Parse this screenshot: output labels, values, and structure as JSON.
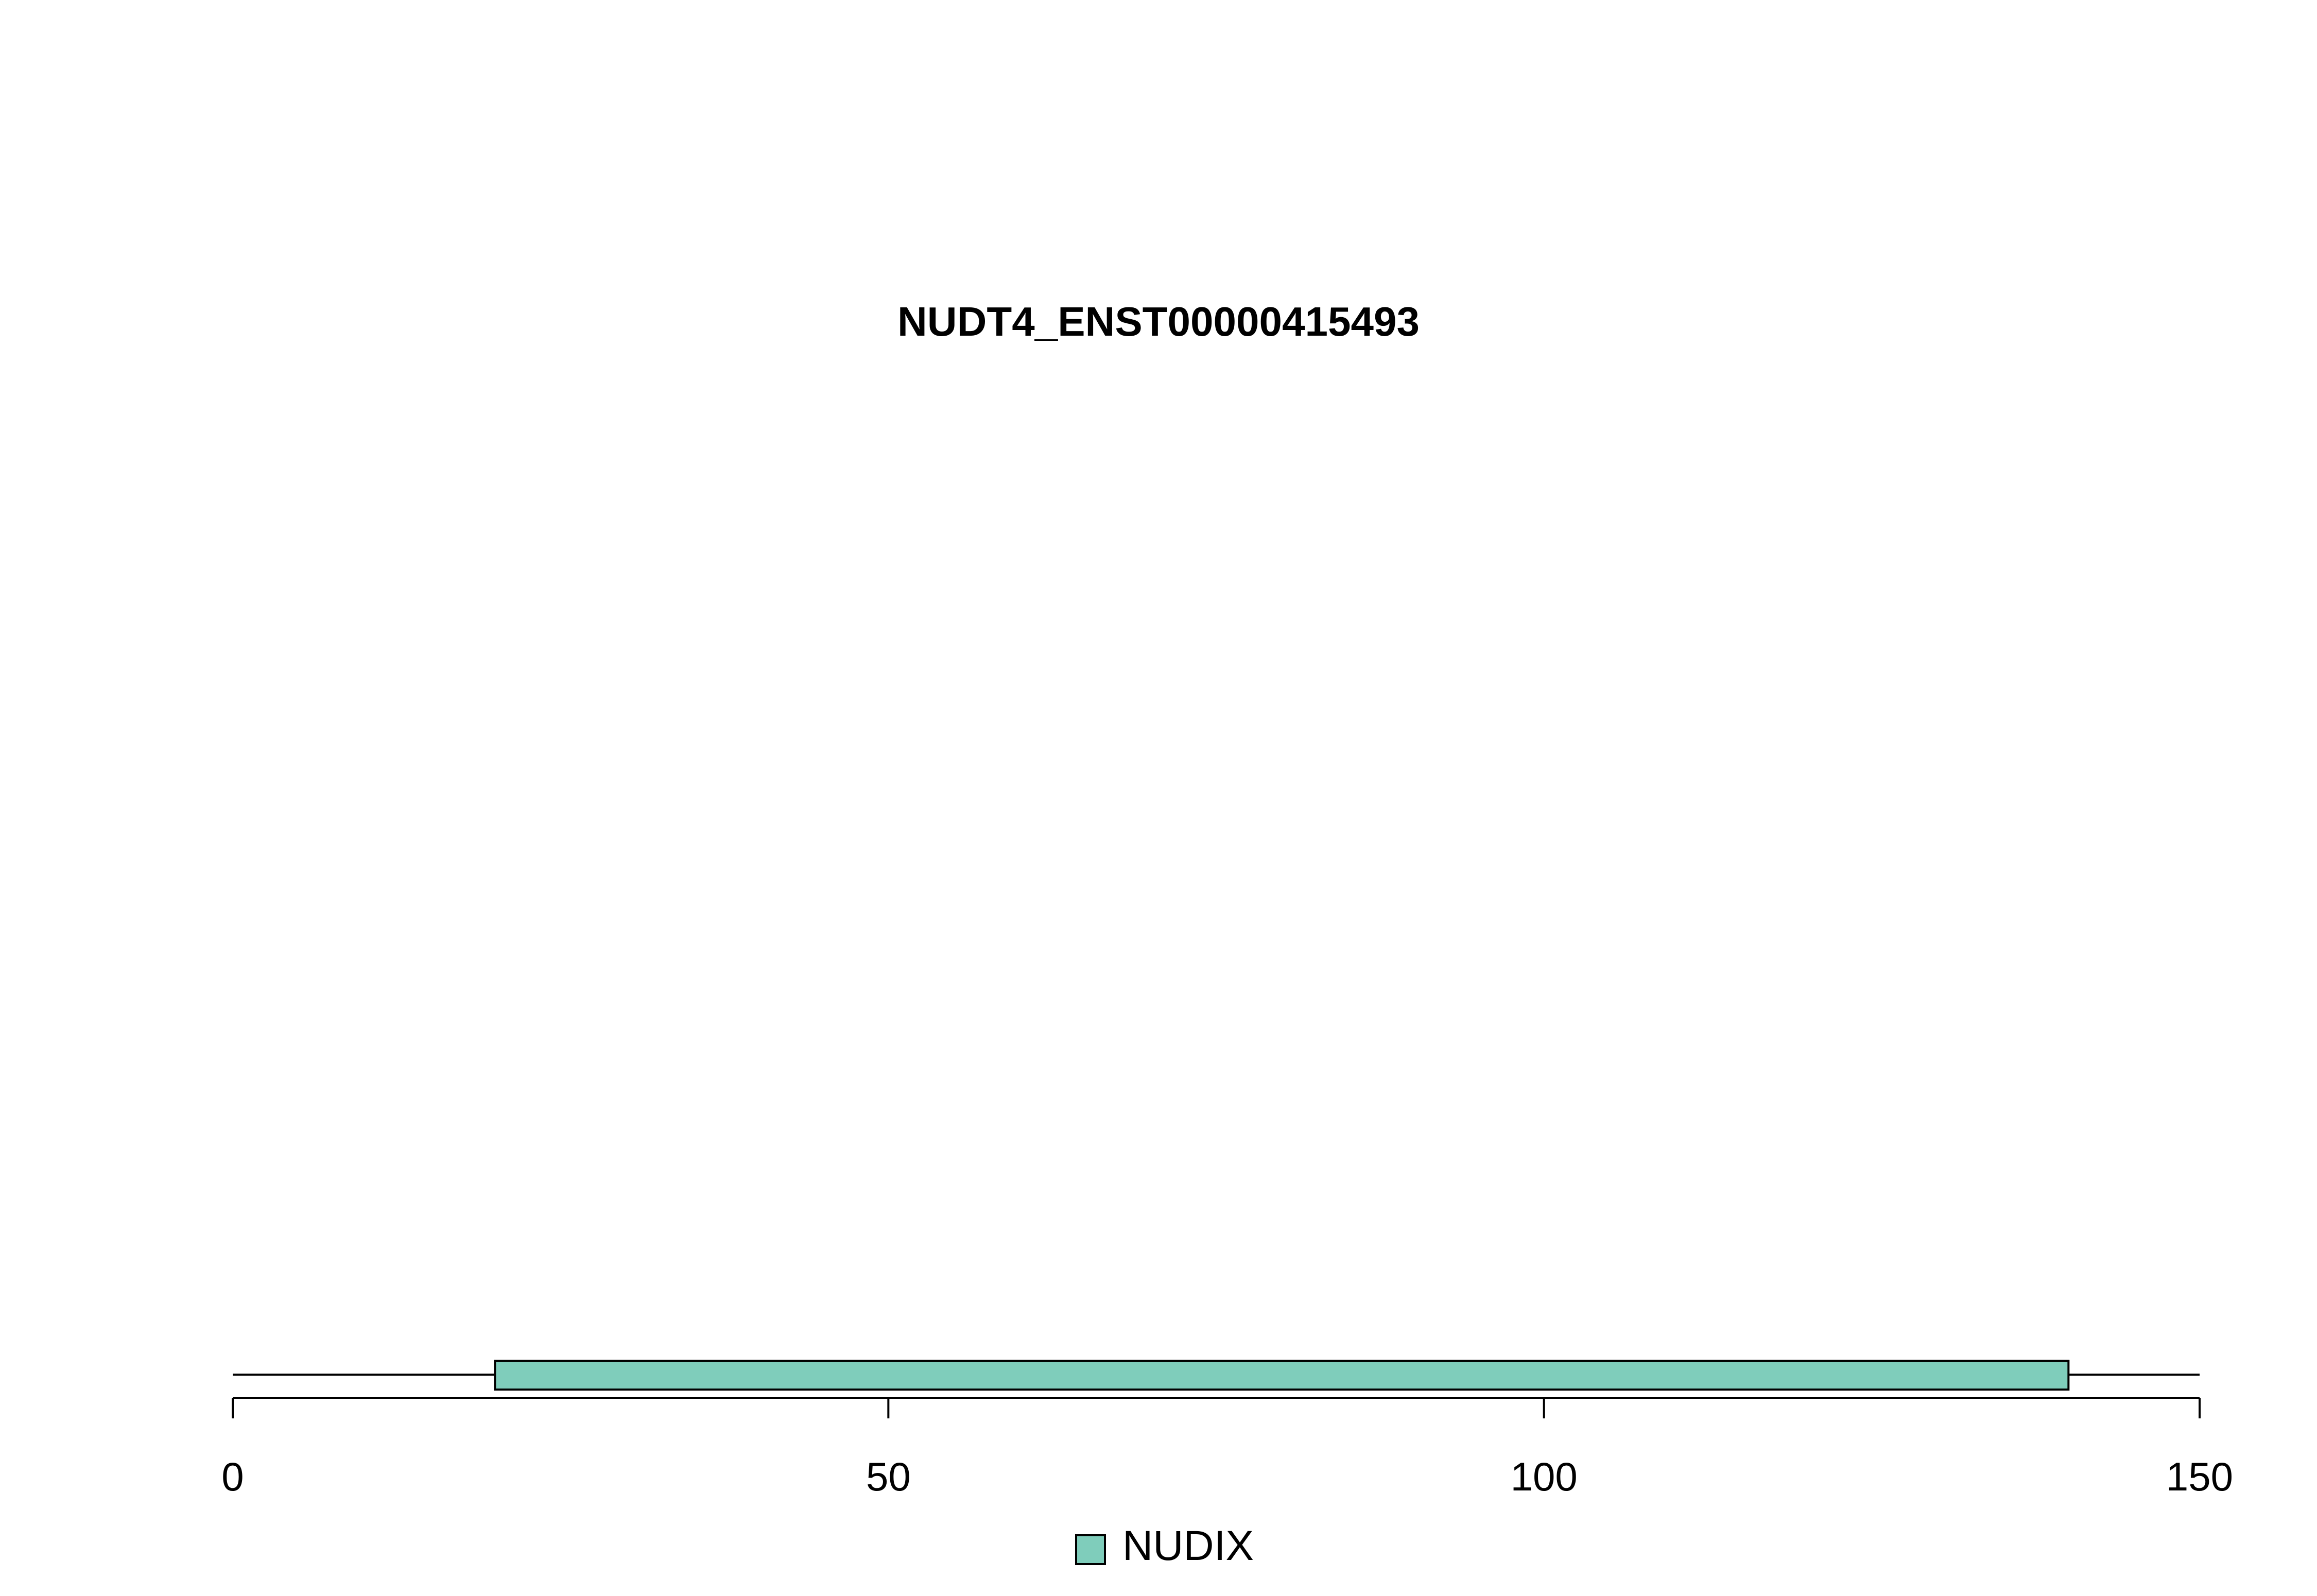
{
  "chart_data": {
    "type": "domain-track",
    "title": "NUDT4_ENST00000415493",
    "xlim": [
      0,
      150
    ],
    "x_ticks": [
      0,
      50,
      100,
      150
    ],
    "x_tick_labels": [
      "0",
      "50",
      "100",
      "150"
    ],
    "protein_length": 150,
    "domains": [
      {
        "name": "NUDIX",
        "start": 20,
        "end": 140,
        "color": "#7fcdbb"
      }
    ],
    "legend": [
      {
        "label": "NUDIX",
        "color": "#7fcdbb"
      }
    ],
    "legend_placement": "bottom-center",
    "grid": false
  }
}
